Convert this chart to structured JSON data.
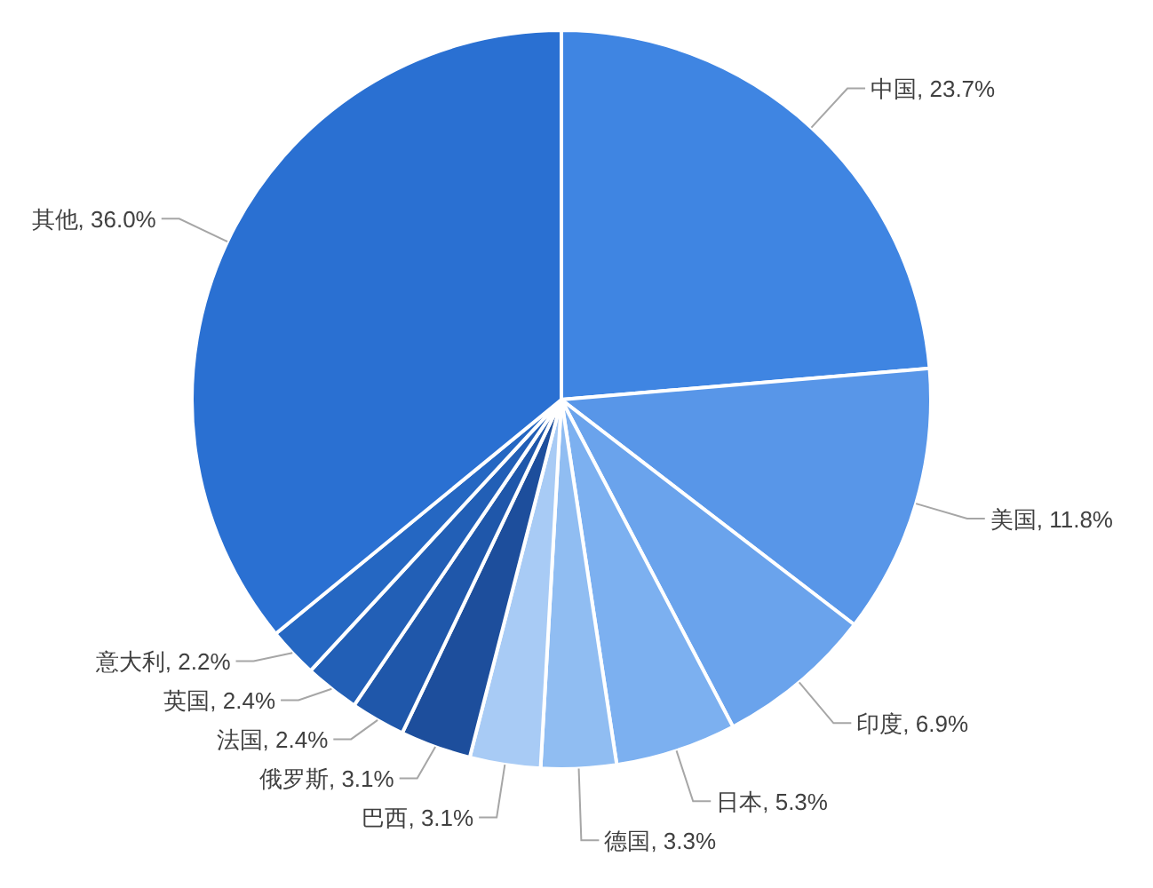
{
  "chart_data": {
    "type": "pie",
    "categories": [
      "中国",
      "美国",
      "印度",
      "日本",
      "德国",
      "巴西",
      "俄罗斯",
      "法国",
      "英国",
      "意大利",
      "其他"
    ],
    "values": [
      23.7,
      11.8,
      6.9,
      5.3,
      3.3,
      3.1,
      3.1,
      2.4,
      2.4,
      2.2,
      36.0
    ],
    "value_labels": [
      "23.7%",
      "11.8%",
      "6.9%",
      "5.3%",
      "3.3%",
      "3.1%",
      "3.1%",
      "2.4%",
      "2.4%",
      "2.2%",
      "36.0%"
    ],
    "colors": [
      "#3f85e2",
      "#5896e8",
      "#6aa3ec",
      "#7cb0f0",
      "#90bdf2",
      "#a8cbf5",
      "#1d4e9c",
      "#1f57aa",
      "#225fb6",
      "#2567c2",
      "#2a70d2"
    ]
  }
}
